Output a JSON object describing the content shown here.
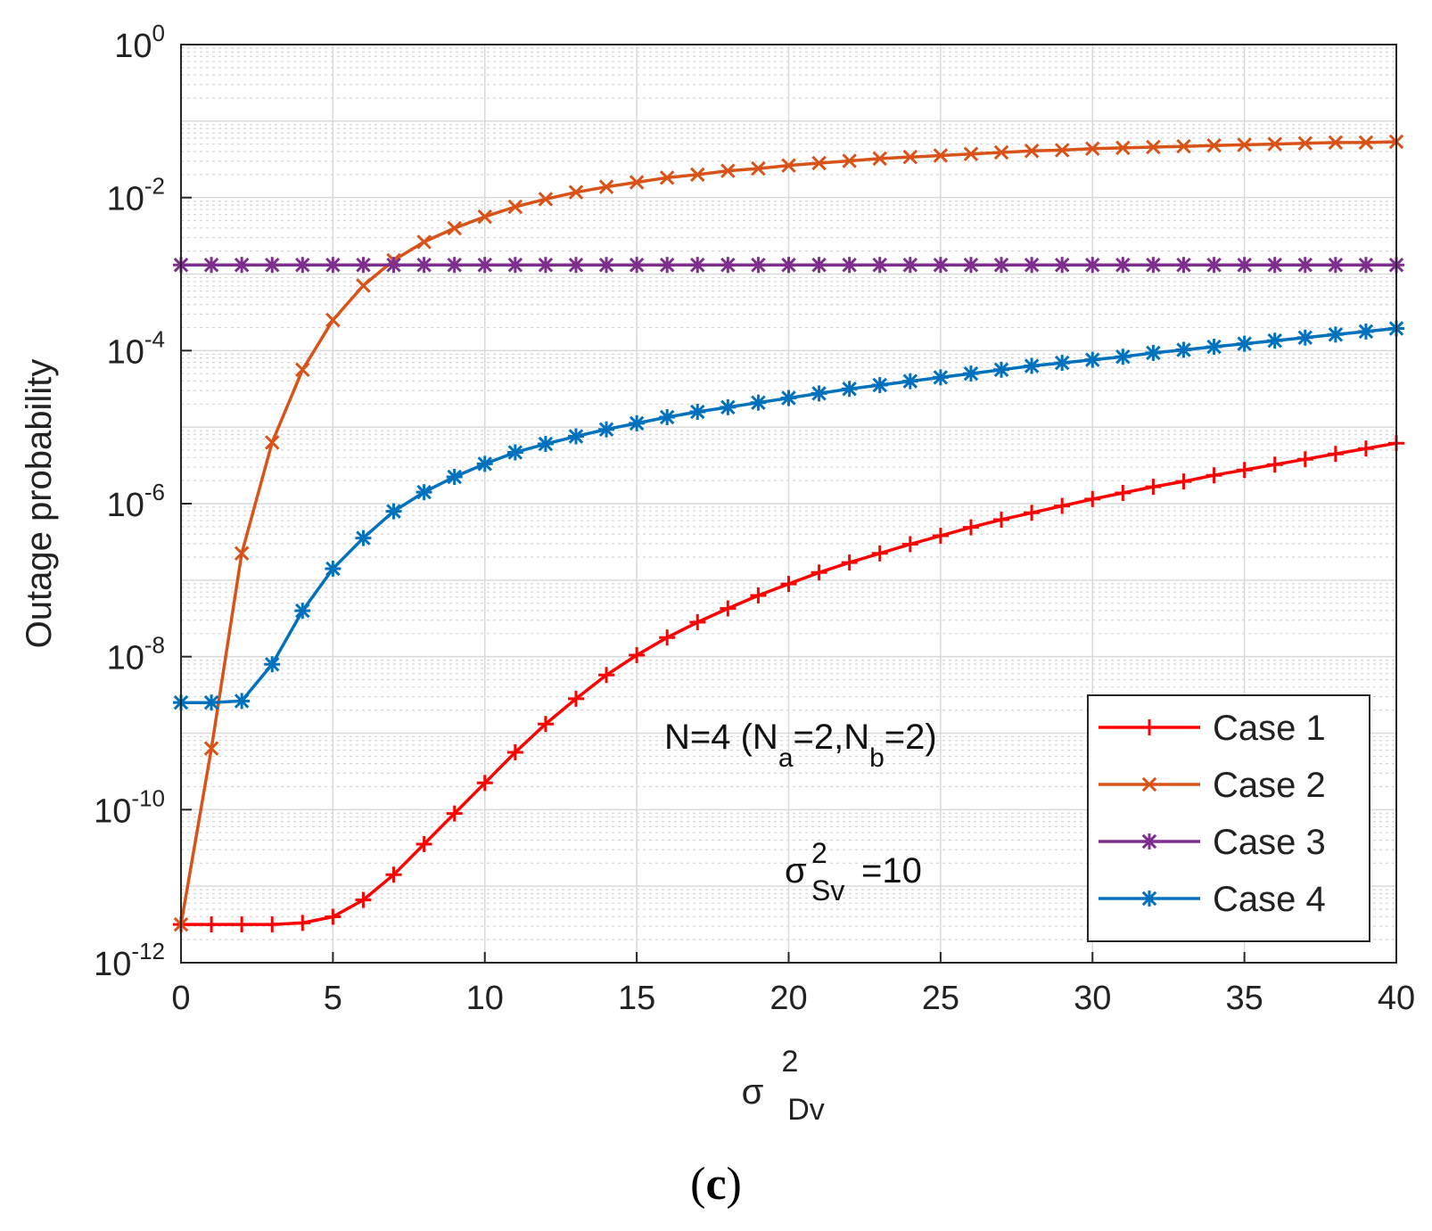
{
  "chart_data": {
    "type": "line",
    "title": "",
    "xlabel": "σ",
    "xlabel_sup": "2",
    "xlabel_sub": "Dv",
    "ylabel": "Outage probability",
    "y_scale": "log",
    "xlim": [
      0,
      40
    ],
    "ylim_exponents": [
      -12,
      0
    ],
    "x_ticks": [
      "0",
      "5",
      "10",
      "15",
      "20",
      "25",
      "30",
      "35",
      "40"
    ],
    "y_tick_base": "10",
    "y_tick_exponents": [
      "0",
      "-2",
      "-4",
      "-6",
      "-8",
      "-10",
      "-12"
    ],
    "grid": true,
    "minor_grid": true,
    "legend_position": "bottom-right",
    "annotation": {
      "line1_prefix": "N=4 (N",
      "sub_a": "a",
      "mid": "=2,N",
      "sub_b": "b",
      "suffix": "=2)",
      "sigma": "σ",
      "sigma_sup": "2",
      "sigma_sub": "Sv",
      "sigma_value": "=10"
    },
    "x": [
      0,
      1,
      2,
      3,
      4,
      5,
      6,
      7,
      8,
      9,
      10,
      11,
      12,
      13,
      14,
      15,
      16,
      17,
      18,
      19,
      20,
      21,
      22,
      23,
      24,
      25,
      26,
      27,
      28,
      29,
      30,
      31,
      32,
      33,
      34,
      35,
      36,
      37,
      38,
      39,
      40
    ],
    "series": [
      {
        "name": "Case 1",
        "color": "#ff0000",
        "marker": "plus",
        "log10_values": [
          -11.5,
          -11.5,
          -11.5,
          -11.5,
          -11.48,
          -11.4,
          -11.18,
          -10.85,
          -10.45,
          -10.05,
          -9.65,
          -9.25,
          -8.88,
          -8.55,
          -8.24,
          -7.98,
          -7.75,
          -7.55,
          -7.37,
          -7.2,
          -7.05,
          -6.9,
          -6.77,
          -6.65,
          -6.53,
          -6.42,
          -6.31,
          -6.21,
          -6.12,
          -6.03,
          -5.94,
          -5.86,
          -5.78,
          -5.71,
          -5.63,
          -5.56,
          -5.49,
          -5.42,
          -5.35,
          -5.28,
          -5.21
        ]
      },
      {
        "name": "Case 2",
        "color": "#d95319",
        "marker": "x",
        "log10_values": [
          -11.5,
          -9.2,
          -6.65,
          -5.2,
          -4.25,
          -3.6,
          -3.15,
          -2.82,
          -2.58,
          -2.4,
          -2.25,
          -2.12,
          -2.02,
          -1.93,
          -1.86,
          -1.8,
          -1.74,
          -1.7,
          -1.65,
          -1.62,
          -1.58,
          -1.55,
          -1.52,
          -1.49,
          -1.47,
          -1.45,
          -1.43,
          -1.41,
          -1.39,
          -1.38,
          -1.36,
          -1.35,
          -1.34,
          -1.33,
          -1.32,
          -1.31,
          -1.3,
          -1.29,
          -1.28,
          -1.28,
          -1.27
        ]
      },
      {
        "name": "Case 3",
        "color": "#7e2f8e",
        "marker": "asterisk",
        "log10_values": [
          -2.88,
          -2.88,
          -2.88,
          -2.88,
          -2.88,
          -2.88,
          -2.88,
          -2.88,
          -2.88,
          -2.88,
          -2.88,
          -2.88,
          -2.88,
          -2.88,
          -2.88,
          -2.88,
          -2.88,
          -2.88,
          -2.88,
          -2.88,
          -2.88,
          -2.88,
          -2.88,
          -2.88,
          -2.88,
          -2.88,
          -2.88,
          -2.88,
          -2.88,
          -2.88,
          -2.88,
          -2.88,
          -2.88,
          -2.88,
          -2.88,
          -2.88,
          -2.88,
          -2.88,
          -2.88,
          -2.88,
          -2.88
        ]
      },
      {
        "name": "Case 4",
        "color": "#0072bd",
        "marker": "asterisk",
        "log10_values": [
          -8.6,
          -8.6,
          -8.58,
          -8.1,
          -7.4,
          -6.85,
          -6.45,
          -6.1,
          -5.85,
          -5.65,
          -5.48,
          -5.33,
          -5.22,
          -5.12,
          -5.03,
          -4.95,
          -4.87,
          -4.8,
          -4.74,
          -4.68,
          -4.62,
          -4.56,
          -4.5,
          -4.45,
          -4.4,
          -4.35,
          -4.3,
          -4.25,
          -4.2,
          -4.16,
          -4.12,
          -4.08,
          -4.03,
          -3.99,
          -3.95,
          -3.91,
          -3.87,
          -3.83,
          -3.79,
          -3.75,
          -3.71
        ]
      }
    ]
  },
  "caption": {
    "open": "(",
    "letter": "c",
    "close": ")"
  }
}
